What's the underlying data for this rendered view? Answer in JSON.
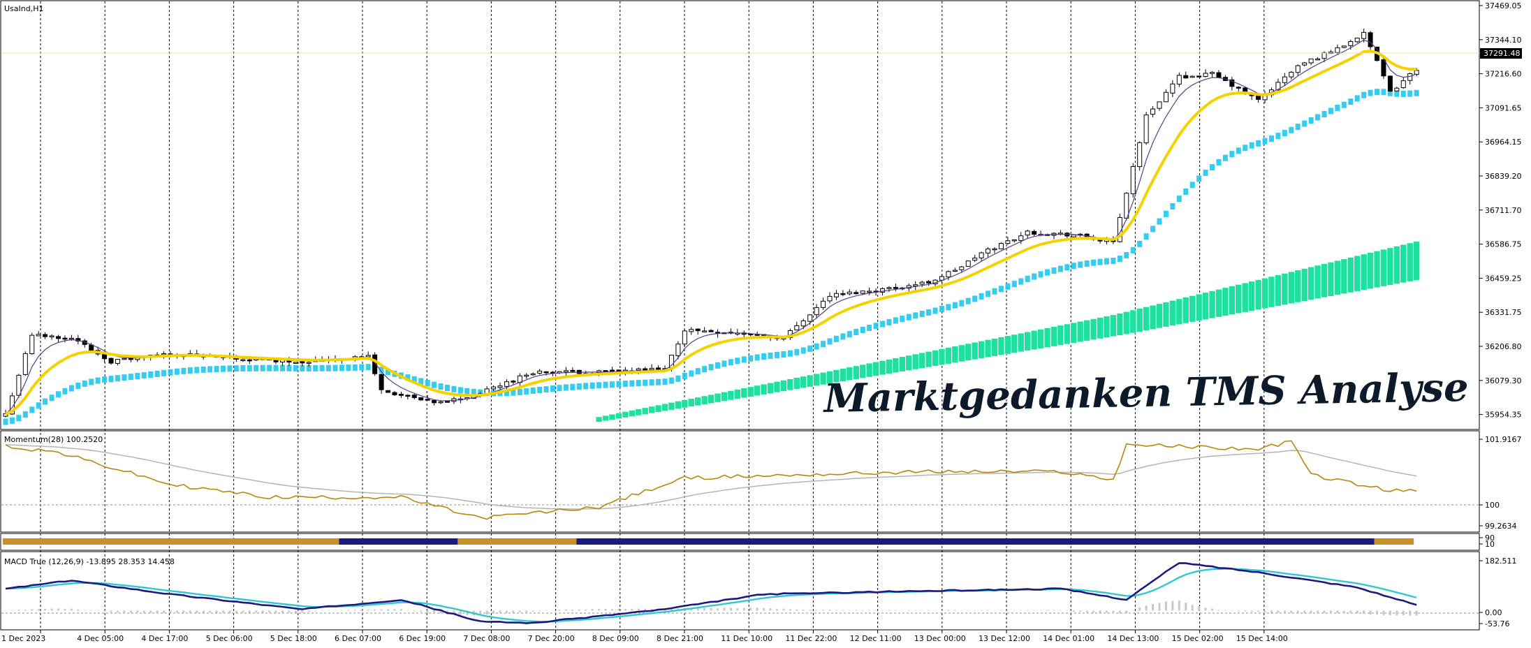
{
  "symbol": "UsaInd,H1",
  "watermark": "Marktgedanken TMS Analyse",
  "colors": {
    "bull_candle": "#ffffff",
    "bear_candle": "#000000",
    "ema_fast": "#f5d100",
    "ma_slow": "#5a3a8c",
    "cloud_fast": "#1ec8f0",
    "cloud_slow": "#1ee0a0",
    "momentum": "#b8860b",
    "momentum_signal": "#b4b4b4",
    "macd_line": "#1a1a80",
    "macd_signal": "#30c8d0",
    "macd_hist": "#c8c8c8",
    "strip_gold": "#c8902a",
    "strip_blue": "#1a1a80"
  },
  "price_panel": {
    "current_price_label": "37291.48",
    "tick_labels": [
      "37469.05",
      "37344.10",
      "37216.60",
      "37091.65",
      "36964.15",
      "36839.20",
      "36711.70",
      "36586.75",
      "36459.25",
      "36331.75",
      "36206.80",
      "36079.30",
      "35954.35"
    ]
  },
  "momentum_panel": {
    "label": "Momentum(28) 100.2520",
    "tick_labels": [
      "101.9167",
      "100",
      "99.2634"
    ]
  },
  "strip_panel": {
    "label": "",
    "tick_labels": [
      "90",
      "10"
    ]
  },
  "macd_panel": {
    "label": "MACD True (12,26,9) -13.895 28.353 14.458",
    "tick_labels": [
      "182.511",
      "0.00",
      "-53.76"
    ]
  },
  "time_axis": {
    "labels": [
      "1 Dec 2023",
      "4 Dec 05:00",
      "4 Dec 17:00",
      "5 Dec 06:00",
      "5 Dec 18:00",
      "6 Dec 07:00",
      "6 Dec 19:00",
      "7 Dec 08:00",
      "7 Dec 20:00",
      "8 Dec 09:00",
      "8 Dec 21:00",
      "11 Dec 10:00",
      "11 Dec 22:00",
      "12 Dec 11:00",
      "13 Dec 00:00",
      "13 Dec 12:00",
      "14 Dec 01:00",
      "14 Dec 13:00",
      "15 Dec 02:00",
      "15 Dec 14:00"
    ]
  },
  "chart_data": {
    "type": "candlestick",
    "title": "UsaInd,H1",
    "ylim": [
      35900,
      37500
    ],
    "anchors": {
      "close": [
        [
          0,
          35950
        ],
        [
          4,
          36250
        ],
        [
          10,
          36240
        ],
        [
          16,
          36150
        ],
        [
          25,
          36180
        ],
        [
          35,
          36160
        ],
        [
          45,
          36150
        ],
        [
          55,
          36170
        ],
        [
          57,
          36040
        ],
        [
          65,
          35990
        ],
        [
          71,
          36020
        ],
        [
          80,
          36110
        ],
        [
          90,
          36110
        ],
        [
          100,
          36120
        ],
        [
          103,
          36270
        ],
        [
          110,
          36260
        ],
        [
          118,
          36240
        ],
        [
          125,
          36400
        ],
        [
          135,
          36430
        ],
        [
          140,
          36450
        ],
        [
          145,
          36510
        ],
        [
          148,
          36560
        ],
        [
          155,
          36640
        ],
        [
          162,
          36630
        ],
        [
          168,
          36600
        ],
        [
          173,
          37080
        ],
        [
          178,
          37230
        ],
        [
          183,
          37240
        ],
        [
          190,
          37140
        ],
        [
          196,
          37270
        ],
        [
          203,
          37350
        ],
        [
          206,
          37400
        ],
        [
          210,
          37170
        ],
        [
          214,
          37260
        ]
      ]
    },
    "indicators": {
      "momentum": {
        "ylim": [
          99.2,
          102.1
        ],
        "anchors": [
          [
            0,
            101.8
          ],
          [
            8,
            101.6
          ],
          [
            25,
            100.6
          ],
          [
            40,
            100.2
          ],
          [
            60,
            100.2
          ],
          [
            72,
            99.55
          ],
          [
            90,
            99.9
          ],
          [
            103,
            100.8
          ],
          [
            120,
            100.9
          ],
          [
            140,
            101.0
          ],
          [
            160,
            101.0
          ],
          [
            168,
            100.75
          ],
          [
            170,
            101.85
          ],
          [
            190,
            101.7
          ],
          [
            195,
            101.95
          ],
          [
            198,
            100.9
          ],
          [
            210,
            100.4
          ],
          [
            214,
            100.4
          ]
        ]
      },
      "macd": {
        "ylim": [
          -60,
          190
        ],
        "anchors": [
          [
            0,
            80
          ],
          [
            10,
            110
          ],
          [
            25,
            60
          ],
          [
            45,
            5
          ],
          [
            60,
            40
          ],
          [
            72,
            -40
          ],
          [
            80,
            -45
          ],
          [
            100,
            5
          ],
          [
            115,
            60
          ],
          [
            135,
            70
          ],
          [
            160,
            80
          ],
          [
            170,
            40
          ],
          [
            178,
            175
          ],
          [
            190,
            140
          ],
          [
            205,
            85
          ],
          [
            214,
            20
          ]
        ]
      }
    }
  }
}
